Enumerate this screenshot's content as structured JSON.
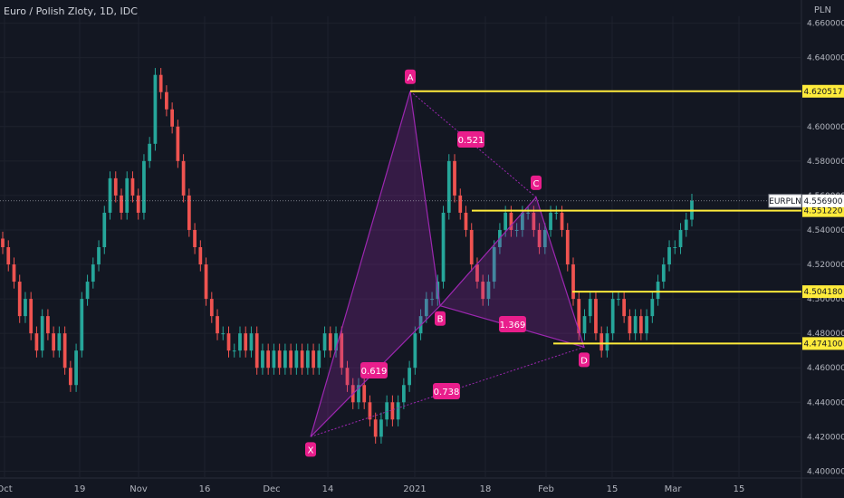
{
  "title": "Euro / Polish Zloty, 1D, IDC",
  "chart_data": {
    "type": "candlestick",
    "ticker": "EURPLN",
    "unit": "PLN",
    "ylim": [
      4.396,
      4.664
    ],
    "y_ticks": [
      "4.660000",
      "4.640000",
      "4.620000",
      "4.600000",
      "4.580000",
      "4.560000",
      "4.540000",
      "4.520000",
      "4.500000",
      "4.480000",
      "4.460000",
      "4.440000",
      "4.420000",
      "4.400000"
    ],
    "x_ticks": [
      "Oct",
      "19",
      "Nov",
      "16",
      "Dec",
      "14",
      "2021",
      "18",
      "Feb",
      "15",
      "Mar",
      "15"
    ],
    "last_price": "4.556900",
    "levels": [
      {
        "label": "4.620517",
        "value": 4.6205
      },
      {
        "label": "4.551220",
        "value": 4.5512
      },
      {
        "label": "4.504180",
        "value": 4.5042
      },
      {
        "label": "4.474100",
        "value": 4.4741
      }
    ],
    "pattern_points": [
      {
        "label": "X",
        "value": 4.42
      },
      {
        "label": "A",
        "value": 4.6205
      },
      {
        "label": "B",
        "value": 4.496
      },
      {
        "label": "C",
        "value": 4.559
      },
      {
        "label": "D",
        "value": 4.472
      }
    ],
    "ratios": [
      {
        "label": "0.521"
      },
      {
        "label": "0.619"
      },
      {
        "label": "1.369"
      },
      {
        "label": "0.738"
      }
    ],
    "closes": [
      4.53,
      4.52,
      4.51,
      4.49,
      4.5,
      4.48,
      4.47,
      4.49,
      4.48,
      4.47,
      4.48,
      4.46,
      4.45,
      4.47,
      4.5,
      4.51,
      4.52,
      4.53,
      4.55,
      4.57,
      4.56,
      4.55,
      4.57,
      4.56,
      4.55,
      4.58,
      4.59,
      4.63,
      4.62,
      4.61,
      4.6,
      4.58,
      4.56,
      4.54,
      4.53,
      4.52,
      4.5,
      4.49,
      4.48,
      4.48,
      4.47,
      4.47,
      4.48,
      4.47,
      4.48,
      4.46,
      4.47,
      4.46,
      4.47,
      4.46,
      4.47,
      4.46,
      4.47,
      4.46,
      4.47,
      4.46,
      4.47,
      4.48,
      4.47,
      4.48,
      4.46,
      4.45,
      4.44,
      4.45,
      4.44,
      4.43,
      4.42,
      4.43,
      4.44,
      4.43,
      4.44,
      4.45,
      4.46,
      4.48,
      4.49,
      4.5,
      4.5,
      4.51,
      4.55,
      4.58,
      4.56,
      4.55,
      4.54,
      4.52,
      4.51,
      4.5,
      4.51,
      4.53,
      4.54,
      4.55,
      4.54,
      4.54,
      4.55,
      4.55,
      4.54,
      4.53,
      4.54,
      4.55,
      4.55,
      4.54,
      4.52,
      4.5,
      4.48,
      4.49,
      4.5,
      4.48,
      4.47,
      4.48,
      4.5,
      4.5,
      4.49,
      4.48,
      4.49,
      4.48,
      4.49,
      4.5,
      4.51,
      4.52,
      4.53,
      4.53,
      4.54,
      4.546,
      4.557
    ]
  }
}
